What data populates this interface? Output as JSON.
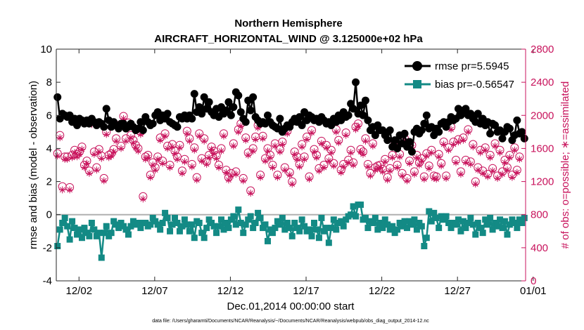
{
  "chart_data": {
    "type": "line",
    "title": "Northern Hemisphere",
    "subtitle": "AIRCRAFT_HORIZONTAL_WIND @ 3.125000e+02 hPa",
    "xlabel": "Dec.01,2014 00:00:00 start",
    "ylabel": "rmse and bias (model - observation)",
    "ylabel_right": "# of obs: o=possible; ∗=assimilated",
    "footnote": "data file: /Users/gharamti/Documents/NCAR/Reanalysis/~/Documents/NCAR/Reanalysis/webpub/obs_diag_output_2014-12.nc",
    "xlim": [
      0.5,
      31.5
    ],
    "ylim": [
      -4,
      10
    ],
    "ylim_right": [
      0,
      2800
    ],
    "x_ticks": [
      2,
      7,
      12,
      17,
      22,
      27,
      32
    ],
    "x_tick_labels": [
      "12/02",
      "12/07",
      "12/12",
      "12/17",
      "12/22",
      "12/27",
      "01/01"
    ],
    "y_ticks": [
      -4,
      -2,
      0,
      2,
      4,
      6,
      8,
      10
    ],
    "y_tick_labels": [
      "-4",
      "-2",
      "0",
      "2",
      "4",
      "6",
      "8",
      "10"
    ],
    "y_ticks_right": [
      0,
      400,
      800,
      1200,
      1600,
      2000,
      2400,
      2800
    ],
    "y_tick_labels_right": [
      "0",
      "400",
      "800",
      "1200",
      "1600",
      "2000",
      "2400",
      "2800"
    ],
    "zero_line": 0,
    "legend_position": "top-right",
    "colors": {
      "rmse": "#000000",
      "bias": "#138a85",
      "obs": "#c8135c",
      "zero": "#b0b0b0"
    },
    "series": [
      {
        "name": "rmse",
        "legend": "rmse pr=5.5945",
        "values": [
          7.1,
          5.8,
          6.1,
          6.0,
          5.9,
          6.0,
          5.6,
          5.8,
          5.4,
          5.8,
          5.7,
          5.5,
          5.7,
          5.5,
          5.8,
          5.6,
          5.4,
          5.6,
          5.5,
          5.3,
          6.4,
          5.7,
          5.3,
          5.6,
          5.4,
          5.2,
          5.5,
          5.5,
          5.2,
          5.3,
          5.5,
          5.3,
          5.1,
          5.2,
          5.6,
          5.1,
          5.9,
          5.6,
          5.4,
          5.5,
          6.0,
          6.2,
          5.7,
          6.0,
          5.8,
          6.1,
          5.6,
          5.5,
          5.4,
          5.3,
          5.9,
          5.8,
          6.0,
          5.8,
          6.0,
          5.8,
          7.3,
          6.2,
          6.5,
          6.1,
          7.1,
          6.4,
          6.8,
          6.2,
          6.0,
          6.4,
          5.9,
          6.5,
          6.1,
          6.3,
          6.8,
          6.0,
          6.5,
          7.4,
          7.2,
          6.2,
          5.8,
          5.6,
          6.9,
          6.3,
          7.1,
          5.9,
          5.7,
          5.5,
          5.6,
          5.5,
          6.0,
          5.6,
          5.4,
          5.3,
          5.2,
          5.8,
          5.0,
          5.2,
          5.4,
          5.3,
          5.6,
          5.8,
          5.6,
          5.9,
          5.4,
          6.2,
          5.7,
          6.0,
          5.9,
          5.7,
          5.8,
          5.6,
          5.9,
          5.7,
          5.5,
          5.6,
          5.4,
          5.8,
          5.6,
          6.0,
          5.7,
          6.2,
          5.9,
          6.0,
          6.7,
          6.4,
          8.0,
          6.1,
          6.6,
          6.0,
          6.9,
          5.7,
          5.1,
          5.3,
          4.8,
          5.4,
          5.1,
          5.1,
          4.8,
          4.5,
          5.1,
          4.1,
          4.5,
          4.0,
          4.8,
          4.3,
          4.9,
          4.1,
          4.4,
          3.8,
          5.0,
          5.2,
          4.9,
          5.1,
          5.5,
          6.0,
          5.2,
          5.3,
          4.8,
          5.2,
          5.0,
          5.5,
          5.6,
          5.3,
          5.6,
          5.9,
          5.7,
          5.8,
          6.4,
          6.0,
          6.3,
          6.4,
          6.0,
          6.1,
          5.8,
          5.6,
          6.1,
          5.5,
          5.8,
          5.4,
          5.6,
          4.9,
          5.5,
          5.4,
          5.0,
          5.1,
          4.6,
          5.0,
          5.3,
          5.2,
          4.5,
          4.8,
          5.7,
          4.9,
          5.0,
          4.6
        ]
      },
      {
        "name": "bias",
        "legend": "bias pr=-0.56547",
        "values": [
          -1.9,
          -0.9,
          -0.5,
          -0.2,
          -0.7,
          -1.5,
          -0.4,
          -0.8,
          -1.2,
          -0.9,
          -1.4,
          -0.8,
          -1.1,
          -1.3,
          -0.5,
          -0.9,
          -1.3,
          -1.1,
          -2.6,
          -1.1,
          -0.7,
          -1.3,
          -1.1,
          -0.4,
          -0.6,
          -0.8,
          -0.5,
          -0.7,
          -0.9,
          -1.2,
          -0.7,
          -0.4,
          -0.6,
          -0.5,
          -0.8,
          -0.5,
          -0.5,
          -0.7,
          -0.6,
          -0.2,
          -0.4,
          -0.6,
          -0.9,
          -0.5,
          0.1,
          -0.2,
          -1.0,
          -0.6,
          -0.2,
          -0.5,
          -1.0,
          -0.7,
          -0.3,
          -0.6,
          -1.0,
          -0.6,
          -1.4,
          -0.4,
          -0.5,
          -1.1,
          -1.4,
          -0.8,
          -0.3,
          -0.5,
          -0.7,
          -1.1,
          -0.7,
          -0.3,
          -0.9,
          -0.5,
          -0.8,
          -0.3,
          -0.1,
          -0.6,
          0.3,
          -0.5,
          -1.1,
          -0.6,
          -0.3,
          -0.1,
          -0.8,
          -0.5,
          0.1,
          -0.2,
          -0.8,
          -0.6,
          -1.6,
          -0.9,
          -1.1,
          -0.8,
          -0.4,
          -0.6,
          -0.2,
          -0.9,
          -0.5,
          -0.8,
          -1.3,
          -0.5,
          -0.8,
          -1.0,
          -0.3,
          -0.7,
          -1.0,
          -0.9,
          -1.3,
          -0.5,
          -0.9,
          -1.4,
          -0.2,
          -1.0,
          -0.8,
          -1.7,
          -0.8,
          -0.3,
          -0.9,
          -0.5,
          -0.4,
          -0.7,
          -0.3,
          -0.1,
          0.0,
          0.5,
          -0.1,
          0.6,
          0.6,
          -0.3,
          -0.2,
          -0.8,
          -0.4,
          -0.5,
          -0.2,
          -0.9,
          -0.5,
          -0.8,
          -0.3,
          -0.6,
          -0.9,
          -0.7,
          -1.1,
          -0.9,
          -0.5,
          -0.7,
          -0.4,
          -0.8,
          -0.4,
          -0.6,
          -0.3,
          -0.9,
          -0.5,
          -0.7,
          -1.9,
          -1.4,
          0.2,
          -0.4,
          0.1,
          -0.2,
          -0.8,
          -0.1,
          -0.3,
          -0.1,
          -0.5,
          -0.8,
          -0.5,
          -0.6,
          -0.3,
          -1.0,
          -0.4,
          -0.8,
          -0.5,
          -0.2,
          -0.6,
          -1.2,
          -0.5,
          -0.8,
          -1.1,
          -0.3,
          -0.6,
          -0.2,
          -0.9,
          -0.5,
          -0.7,
          -0.3,
          -0.8,
          -0.4,
          -1.2,
          -0.6,
          -0.3,
          -0.5,
          -0.8,
          -0.3,
          -0.5,
          -0.2
        ]
      },
      {
        "name": "possible",
        "legend": "o=possible",
        "axis": "right",
        "values": [
          1540,
          1760,
          1140,
          1500,
          1500,
          1130,
          1520,
          1580,
          1530,
          1560,
          1620,
          1400,
          1450,
          1330,
          1920,
          1560,
          1370,
          1590,
          1510,
          1240,
          1800,
          1520,
          1540,
          1590,
          1720,
          1880,
          1630,
          1990,
          1720,
          1910,
          1760,
          1700,
          1640,
          1600,
          1800,
          1020,
          1500,
          1520,
          1280,
          1430,
          1370,
          1500,
          1730,
          1450,
          1780,
          1630,
          1400,
          1650,
          1570,
          1500,
          1640,
          1330,
          1470,
          1810,
          1720,
          1410,
          1610,
          1250,
          1780,
          1480,
          1720,
          1440,
          1520,
          1620,
          1570,
          1510,
          1400,
          1600,
          1780,
          1340,
          1250,
          1300,
          1660,
          1320,
          1830,
          1900,
          1240,
          1730,
          1550,
          1090,
          1600,
          1740,
          1880,
          1280,
          1750,
          1480,
          1600,
          1520,
          1400,
          1660,
          1280,
          1590,
          1680,
          1370,
          1810,
          1310,
          1200,
          1560,
          1500,
          1410,
          1650,
          1500,
          1740,
          1260,
          1820,
          1590,
          1520,
          1360,
          1690,
          1400,
          1640,
          1480,
          1580,
          1420,
          1830,
          1700,
          1340,
          1410,
          1790,
          1460,
          1580,
          1430,
          1860,
          1900,
          1590,
          1560,
          1720,
          1410,
          1300,
          1660,
          1370,
          1390,
          1400,
          1350,
          1470,
          1250,
          1360,
          1520,
          1660,
          1400,
          1530,
          1300,
          1720,
          1240,
          1450,
          1640,
          1320,
          1520,
          1430,
          1480,
          1260,
          1540,
          1390,
          1580,
          1270,
          1260,
          1530,
          1420,
          1680,
          1270,
          1610,
          1860,
          1680,
          1460,
          1710,
          1320,
          1730,
          1460,
          1830,
          1440,
          1650,
          1200,
          1370,
          1580,
          1330,
          1610,
          1290,
          1520,
          1360,
          1660,
          1270,
          1580,
          1320,
          1460,
          1370,
          1520,
          1280,
          1610,
          1340,
          1500
        ]
      },
      {
        "name": "assimilated",
        "legend": "∗=assimilated",
        "axis": "right",
        "values": [
          1510,
          1730,
          1100,
          1470,
          1470,
          1100,
          1490,
          1550,
          1500,
          1530,
          1590,
          1370,
          1420,
          1300,
          1890,
          1530,
          1340,
          1560,
          1480,
          1210,
          1770,
          1490,
          1510,
          1560,
          1690,
          1850,
          1600,
          1960,
          1690,
          1880,
          1730,
          1670,
          1610,
          1570,
          1770,
          990,
          1470,
          1490,
          1250,
          1400,
          1340,
          1470,
          1700,
          1420,
          1750,
          1600,
          1370,
          1620,
          1540,
          1470,
          1610,
          1300,
          1440,
          1780,
          1690,
          1380,
          1580,
          1220,
          1750,
          1450,
          1690,
          1410,
          1490,
          1590,
          1540,
          1480,
          1370,
          1570,
          1750,
          1310,
          1220,
          1270,
          1630,
          1290,
          1800,
          1870,
          1210,
          1700,
          1520,
          1060,
          1570,
          1710,
          1850,
          1250,
          1720,
          1450,
          1570,
          1490,
          1370,
          1630,
          1250,
          1560,
          1650,
          1340,
          1780,
          1280,
          1170,
          1530,
          1470,
          1380,
          1620,
          1470,
          1710,
          1230,
          1790,
          1560,
          1490,
          1330,
          1660,
          1370,
          1610,
          1450,
          1550,
          1390,
          1800,
          1670,
          1310,
          1380,
          1760,
          1430,
          1550,
          1400,
          1830,
          1870,
          1560,
          1530,
          1690,
          1380,
          1270,
          1630,
          1340,
          1360,
          1370,
          1320,
          1440,
          1220,
          1330,
          1490,
          1630,
          1370,
          1500,
          1270,
          1690,
          1210,
          1420,
          1610,
          1290,
          1490,
          1400,
          1450,
          1230,
          1510,
          1360,
          1550,
          1240,
          1230,
          1500,
          1390,
          1650,
          1240,
          1580,
          1830,
          1650,
          1430,
          1680,
          1290,
          1700,
          1430,
          1800,
          1410,
          1620,
          1170,
          1340,
          1550,
          1300,
          1580,
          1260,
          1490,
          1330,
          1630,
          1240,
          1550,
          1290,
          1430,
          1340,
          1490,
          1250,
          1580,
          1310,
          1470
        ]
      }
    ]
  }
}
